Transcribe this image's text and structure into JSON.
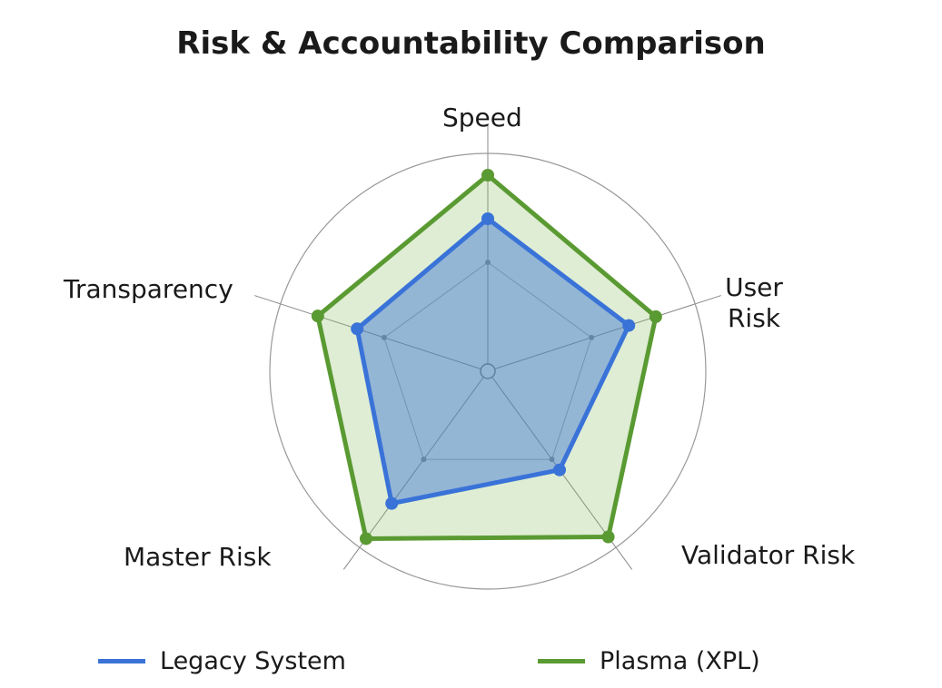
{
  "chart_data": {
    "type": "radar",
    "title": "Risk & Accountability Comparison",
    "categories": [
      "Speed",
      "User Risk",
      "Validator Risk",
      "Master Risk",
      "Transparency"
    ],
    "series": [
      {
        "name": "Plasma (XPL)",
        "color": "#5a9a32",
        "values": [
          90,
          81,
          94,
          95,
          82
        ]
      },
      {
        "name": "Legacy System",
        "color": "#3a73d8",
        "values": [
          70,
          68,
          56,
          75,
          63
        ]
      }
    ],
    "rlim": [
      0,
      100
    ],
    "rticks": [
      50,
      100
    ],
    "grid": true
  }
}
